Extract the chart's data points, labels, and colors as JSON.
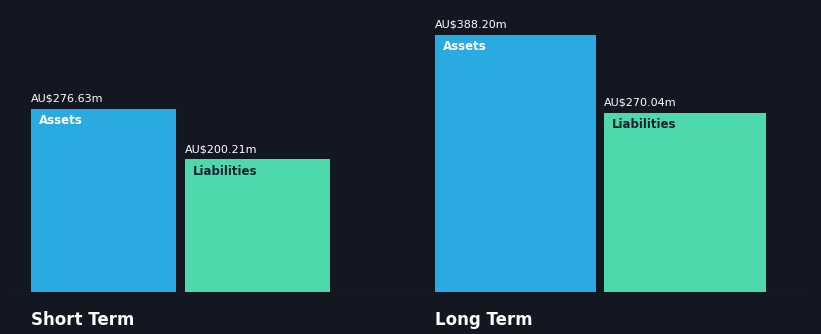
{
  "background_color": "#131722",
  "bar_color_assets": "#29ABE2",
  "bar_color_liabilities": "#4DD9AC",
  "text_color_white": "#FFFFFF",
  "text_color_dark": "#1a2030",
  "groups": [
    {
      "label": "Short Term",
      "assets_value": 276.63,
      "liabilities_value": 200.21,
      "assets_label": "Assets",
      "liabilities_label": "Liabilities",
      "assets_value_str": "AU$276.63m",
      "liabilities_value_str": "AU$200.21m"
    },
    {
      "label": "Long Term",
      "assets_value": 388.2,
      "liabilities_value": 270.04,
      "assets_label": "Assets",
      "liabilities_label": "Liabilities",
      "assets_value_str": "AU$388.20m",
      "liabilities_value_str": "AU$270.04m"
    }
  ],
  "max_value": 430,
  "label_fontsize": 8.5,
  "value_fontsize": 8,
  "group_label_fontsize": 12
}
